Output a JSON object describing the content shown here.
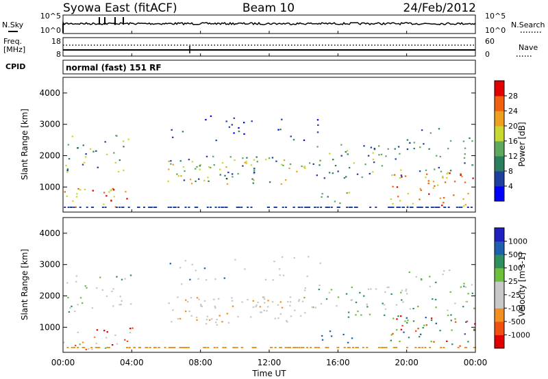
{
  "header": {
    "title": "Syowa East (fitACF)",
    "beam": "Beam 10",
    "date": "24/Feb/2012"
  },
  "left_labels": {
    "nsky": "N.Sky",
    "freq_line1": "Freq.",
    "freq_line2": "[MHz]",
    "cpid": "CPID"
  },
  "right_labels": {
    "nsearch": "N.Search",
    "nave": "Nave"
  },
  "cpid_text": "normal (fast) 151 RF",
  "noise_ticks": {
    "top": "10^5",
    "bottom": "10^0"
  },
  "freq_ticks": {
    "top": "18",
    "bottom": "8"
  },
  "nave_ticks": {
    "top": "60",
    "bottom": "0"
  },
  "colors": {
    "power_scale": [
      "#0000ff",
      "#1f3f9f",
      "#2b7f5f",
      "#5fa85f",
      "#c8d830",
      "#f0a020",
      "#f06010",
      "#e00000"
    ],
    "velocity_scale": [
      "#e00000",
      "#f05010",
      "#f09020",
      "#c8c8c8",
      "#c8c8c8",
      "#6fbf3f",
      "#2f8f5f",
      "#1f5faf",
      "#2020c0"
    ]
  },
  "chart_data": [
    {
      "type": "heatmap",
      "name": "power",
      "ylabel": "Slant Range [km]",
      "y_ticks": [
        "1000",
        "2000",
        "3000",
        "4000"
      ],
      "ylim": [
        200,
        4500
      ],
      "colorbar_label": "Power [dB]",
      "colorbar_ticks": [
        "4",
        "8",
        "12",
        "16",
        "20",
        "24",
        "28"
      ]
    },
    {
      "type": "heatmap",
      "name": "velocity",
      "xlabel": "Time UT",
      "x_ticks": [
        "00:00",
        "04:00",
        "08:00",
        "12:00",
        "16:00",
        "20:00",
        "00:00"
      ],
      "xlim": [
        0,
        24
      ],
      "ylabel": "Slant Range [km]",
      "y_ticks": [
        "1000",
        "2000",
        "3000",
        "4000"
      ],
      "ylim": [
        200,
        4500
      ],
      "colorbar_label": "Velocity [m s-1]",
      "colorbar_ticks": [
        "-1000",
        "-500",
        "-100",
        "-25",
        "25",
        "100",
        "500",
        "1000"
      ]
    }
  ]
}
